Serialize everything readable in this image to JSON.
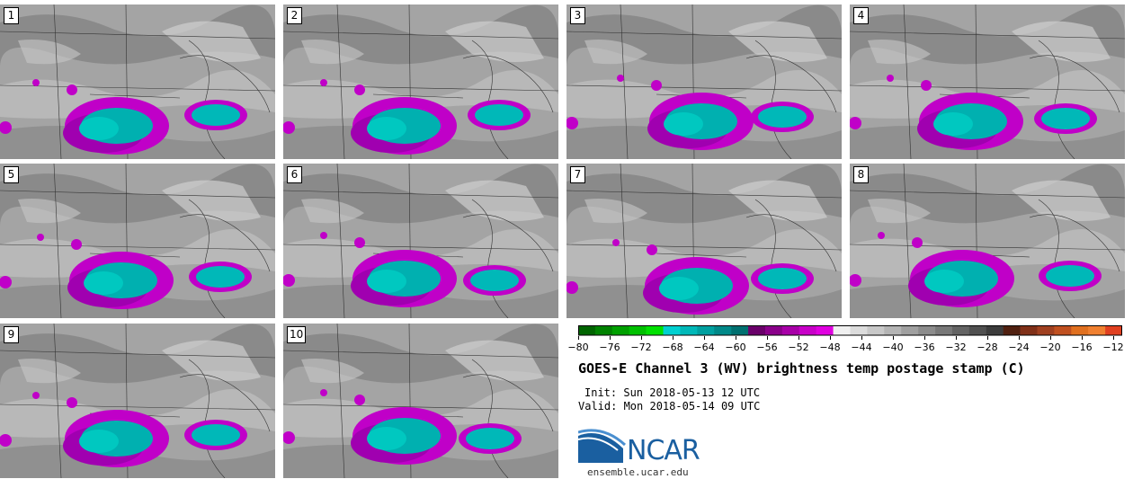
{
  "panels": [
    {
      "label": "1"
    },
    {
      "label": "2"
    },
    {
      "label": "3"
    },
    {
      "label": "4"
    },
    {
      "label": "5"
    },
    {
      "label": "6"
    },
    {
      "label": "7"
    },
    {
      "label": "8"
    },
    {
      "label": "9"
    },
    {
      "label": "10"
    }
  ],
  "colorbar": {
    "ticks": [
      "−80",
      "−76",
      "−72",
      "−68",
      "−64",
      "−60",
      "−56",
      "−52",
      "−48",
      "−44",
      "−40",
      "−36",
      "−32",
      "−28",
      "−24",
      "−20",
      "−16",
      "−12"
    ],
    "colors": [
      "#006400",
      "#008200",
      "#00a000",
      "#00c000",
      "#00e000",
      "#00d0d0",
      "#00b8b8",
      "#00a0a0",
      "#008888",
      "#007070",
      "#6a006a",
      "#8a008a",
      "#a800a8",
      "#c800c8",
      "#e000e0",
      "#f0f0f0",
      "#dcdcdc",
      "#c8c8c8",
      "#b4b4b4",
      "#a0a0a0",
      "#8c8c8c",
      "#787878",
      "#646464",
      "#505050",
      "#3c3c3c",
      "#502010",
      "#803018",
      "#a04020",
      "#c05020",
      "#e07020",
      "#f08030",
      "#e04020"
    ]
  },
  "title": "GOES-E Channel 3 (WV) brightness temp postage stamp (C)",
  "init": "Init: Sun 2018-05-13 12 UTC",
  "valid": "Valid: Mon 2018-05-14 09 UTC",
  "logo": {
    "text": "NCAR",
    "site": "ensemble.ucar.edu"
  }
}
